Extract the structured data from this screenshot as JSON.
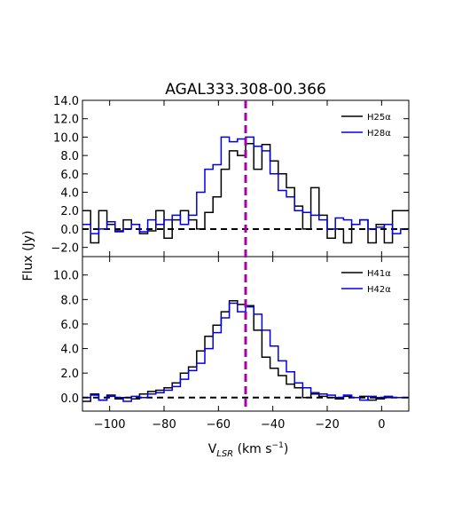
{
  "chart_data": {
    "title": "AGAL333.308-00.366",
    "ylabel": "Flux (Jy)",
    "xlabel_main": "V",
    "xlabel_sub": "LSR",
    "xlabel_unit": " (km s",
    "xlabel_exp": "−1",
    "xlabel_close": ")",
    "xlim": [
      -110,
      10
    ],
    "x_ticks": [
      -100,
      -80,
      -60,
      -40,
      -20,
      0
    ],
    "x_tick_labels": [
      "−100",
      "−80",
      "−60",
      "−40",
      "−20",
      "0"
    ],
    "vline_x": -50,
    "vline_color": "#aa00aa",
    "panels": [
      {
        "type": "line",
        "step": true,
        "ylim": [
          -3,
          14
        ],
        "y_ticks": [
          -2,
          0,
          2,
          4,
          6,
          8,
          10,
          12,
          14
        ],
        "y_tick_labels": [
          "−2.0",
          "0.0",
          "2.0",
          "4.0",
          "6.0",
          "8.0",
          "10.0",
          "12.0",
          "14.0"
        ],
        "legend_position": "top-right",
        "series": [
          {
            "name": "H25α",
            "color": "#000000",
            "x": [
              -110,
              -107,
              -104,
              -101,
              -98,
              -95,
              -92,
              -89,
              -86,
              -83,
              -80,
              -77,
              -74,
              -71,
              -68,
              -65,
              -62,
              -59,
              -56,
              -53,
              -50,
              -47,
              -44,
              -41,
              -38,
              -35,
              -32,
              -29,
              -26,
              -23,
              -20,
              -17,
              -14,
              -11,
              -8,
              -5,
              -2,
              1,
              4,
              7,
              10
            ],
            "y": [
              2.0,
              -1.5,
              2.0,
              0.5,
              -0.2,
              1.0,
              0.5,
              -0.5,
              -0.2,
              2.0,
              -1.0,
              1.0,
              2.0,
              1.0,
              0.0,
              1.8,
              3.5,
              6.5,
              8.5,
              8.0,
              9.3,
              6.5,
              9.2,
              7.4,
              6.0,
              4.5,
              2.5,
              0.0,
              4.5,
              1.5,
              -1.0,
              0.0,
              -1.5,
              0.5,
              1.0,
              -1.5,
              0.5,
              -1.5,
              2.0,
              2.0,
              2.0
            ]
          },
          {
            "name": "H28α",
            "color": "#0000ee",
            "x": [
              -110,
              -107,
              -104,
              -101,
              -98,
              -95,
              -92,
              -89,
              -86,
              -83,
              -80,
              -77,
              -74,
              -71,
              -68,
              -65,
              -62,
              -59,
              -56,
              -53,
              -50,
              -47,
              -44,
              -41,
              -38,
              -35,
              -32,
              -29,
              -26,
              -23,
              -20,
              -17,
              -14,
              -11,
              -8,
              -5,
              -2,
              1,
              4,
              7,
              10
            ],
            "y": [
              0.5,
              -0.5,
              0.0,
              0.8,
              -0.3,
              0.0,
              0.5,
              -0.3,
              1.0,
              0.5,
              1.0,
              1.5,
              0.5,
              1.5,
              4.0,
              6.5,
              7.0,
              10.0,
              9.5,
              9.8,
              10.0,
              9.0,
              8.5,
              6.0,
              4.2,
              3.5,
              2.0,
              1.8,
              1.5,
              1.0,
              0.0,
              1.2,
              1.0,
              0.5,
              1.0,
              0.0,
              0.2,
              0.5,
              -0.5,
              0.0,
              0.0
            ]
          }
        ]
      },
      {
        "type": "line",
        "step": true,
        "ylim": [
          -1.1,
          11.5
        ],
        "y_ticks": [
          0,
          2,
          4,
          6,
          8,
          10
        ],
        "y_tick_labels": [
          "0.0",
          "2.0",
          "4.0",
          "6.0",
          "8.0",
          "10.0"
        ],
        "legend_position": "top-right",
        "series": [
          {
            "name": "H41α",
            "color": "#000000",
            "x": [
              -110,
              -107,
              -104,
              -101,
              -98,
              -95,
              -92,
              -89,
              -86,
              -83,
              -80,
              -77,
              -74,
              -71,
              -68,
              -65,
              -62,
              -59,
              -56,
              -53,
              -50,
              -47,
              -44,
              -41,
              -38,
              -35,
              -32,
              -29,
              -26,
              -23,
              -20,
              -17,
              -14,
              -11,
              -8,
              -5,
              -2,
              1,
              4,
              7,
              10
            ],
            "y": [
              -0.3,
              0.3,
              -0.2,
              0.2,
              -0.1,
              0.0,
              -0.1,
              0.3,
              0.5,
              0.6,
              0.8,
              1.2,
              2.0,
              2.5,
              3.8,
              5.0,
              5.9,
              7.0,
              7.9,
              7.6,
              7.5,
              5.5,
              3.3,
              2.4,
              1.8,
              1.1,
              0.8,
              0.0,
              0.3,
              0.1,
              0.0,
              -0.1,
              0.1,
              0.0,
              0.1,
              -0.2,
              -0.1,
              0.0,
              0.0,
              0.0,
              0.0
            ]
          },
          {
            "name": "H42α",
            "color": "#0000ee",
            "x": [
              -110,
              -107,
              -104,
              -101,
              -98,
              -95,
              -92,
              -89,
              -86,
              -83,
              -80,
              -77,
              -74,
              -71,
              -68,
              -65,
              -62,
              -59,
              -56,
              -53,
              -50,
              -47,
              -44,
              -41,
              -38,
              -35,
              -32,
              -29,
              -26,
              -23,
              -20,
              -17,
              -14,
              -11,
              -8,
              -5,
              -2,
              1,
              4,
              7,
              10
            ],
            "y": [
              0.0,
              0.2,
              -0.2,
              0.1,
              0.0,
              -0.3,
              0.1,
              0.0,
              0.3,
              0.4,
              0.6,
              0.9,
              1.5,
              2.2,
              2.8,
              4.0,
              5.3,
              6.5,
              7.7,
              7.0,
              7.4,
              6.8,
              5.5,
              4.2,
              3.0,
              2.1,
              1.2,
              0.8,
              0.4,
              0.3,
              0.2,
              0.0,
              0.2,
              0.0,
              -0.2,
              0.1,
              0.0,
              0.1,
              0.0,
              0.0,
              0.0
            ]
          }
        ]
      }
    ]
  }
}
